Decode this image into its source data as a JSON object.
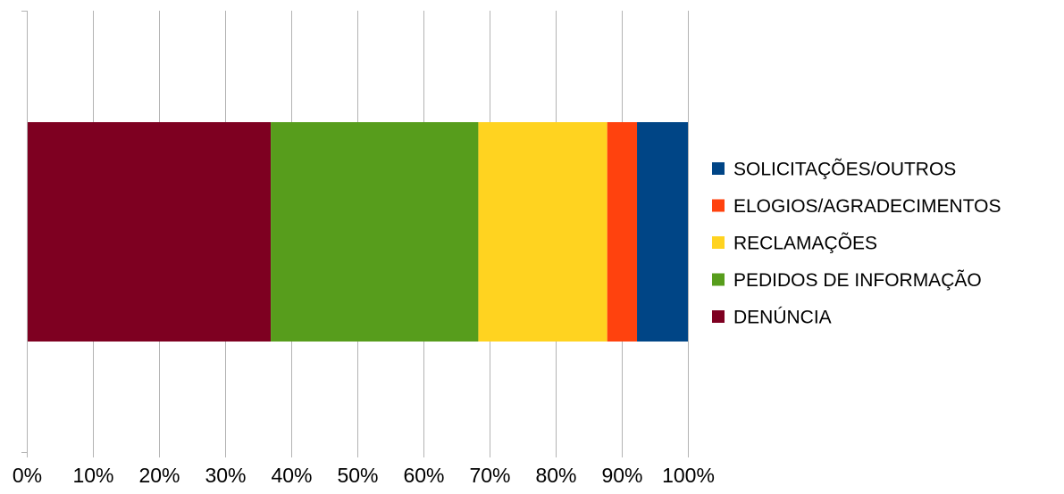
{
  "chart_data": {
    "type": "bar",
    "orientation": "horizontal",
    "stacked": "percent",
    "title": "",
    "xlabel": "",
    "ylabel": "",
    "xlim": [
      0,
      100
    ],
    "x_ticks": [
      "0%",
      "10%",
      "20%",
      "30%",
      "40%",
      "50%",
      "60%",
      "70%",
      "80%",
      "90%",
      "100%"
    ],
    "grid": true,
    "legend_position": "right",
    "series": [
      {
        "name": "DENÚNCIA",
        "values": [
          36.9
        ],
        "color": "#7e0021"
      },
      {
        "name": "PEDIDOS DE INFORMAÇÃO",
        "values": [
          31.4
        ],
        "color": "#579d1c"
      },
      {
        "name": "RECLAMAÇÕES",
        "values": [
          19.5
        ],
        "color": "#ffd320"
      },
      {
        "name": "ELOGIOS/AGRADECIMENTOS",
        "values": [
          4.5
        ],
        "color": "#ff420e"
      },
      {
        "name": "SOLICITAÇÕES/OUTROS",
        "values": [
          7.7
        ],
        "color": "#004586"
      }
    ],
    "legend_order": [
      "SOLICITAÇÕES/OUTROS",
      "ELOGIOS/AGRADECIMENTOS",
      "RECLAMAÇÕES",
      "PEDIDOS DE INFORMAÇÃO",
      "DENÚNCIA"
    ]
  }
}
